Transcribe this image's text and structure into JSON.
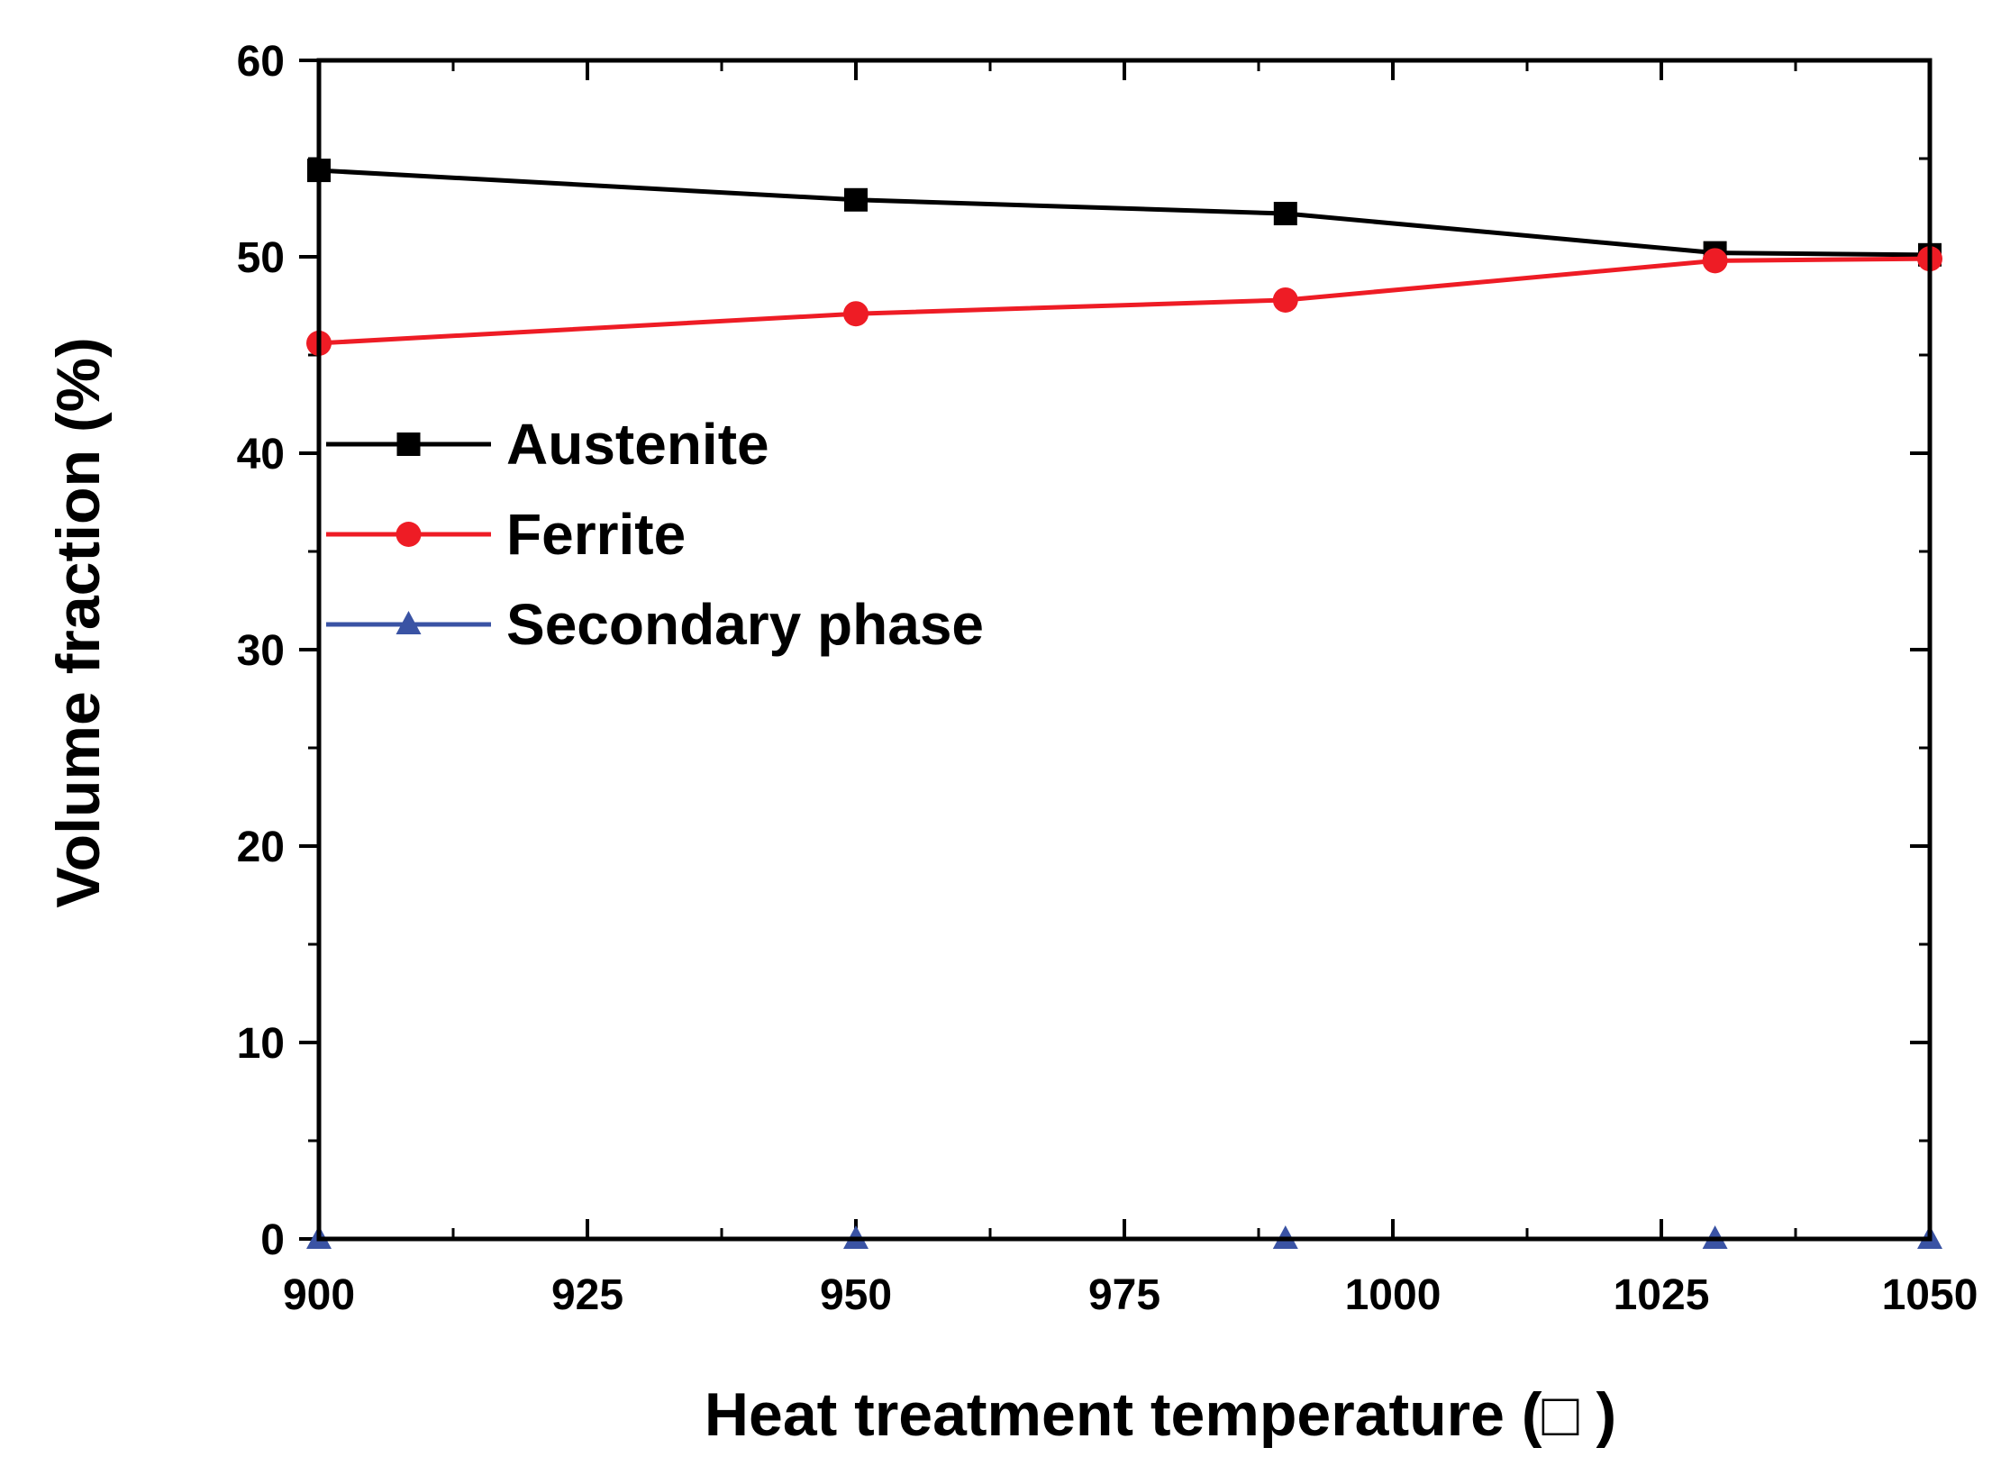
{
  "chart_data": {
    "type": "line",
    "xlabel": "Heat treatment temperature (□ )",
    "ylabel": "Volume fraction (%)",
    "xlim": [
      900,
      1050
    ],
    "ylim": [
      0,
      60
    ],
    "x_ticks": [
      900,
      925,
      950,
      975,
      1000,
      1025,
      1050
    ],
    "y_ticks": [
      0,
      10,
      20,
      30,
      40,
      50,
      60
    ],
    "grid": false,
    "legend_position": "upper-left",
    "x": [
      900,
      950,
      990,
      1030,
      1050
    ],
    "series": [
      {
        "name": "Austenite",
        "color": "#000000",
        "marker": "square",
        "values": [
          54.4,
          52.9,
          52.2,
          50.2,
          50.1
        ]
      },
      {
        "name": "Ferrite",
        "color": "#ee1c25",
        "marker": "circle",
        "values": [
          45.6,
          47.1,
          47.8,
          49.8,
          49.9
        ]
      },
      {
        "name": "Secondary phase",
        "color": "#3a53a4",
        "marker": "triangle",
        "values": [
          0,
          0,
          0,
          0,
          0
        ]
      }
    ]
  }
}
